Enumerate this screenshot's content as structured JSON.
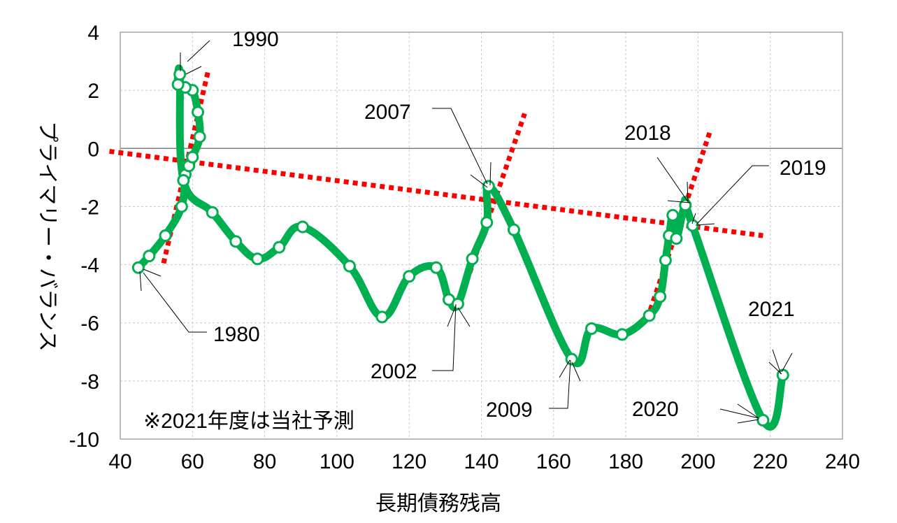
{
  "chart_data": {
    "type": "line",
    "title": "",
    "xlabel": "長期債務残高",
    "ylabel": "プライマリー・バランス",
    "xlim": [
      40,
      240
    ],
    "ylim": [
      -10,
      4
    ],
    "xticks": [
      "40",
      "60",
      "80",
      "100",
      "120",
      "140",
      "160",
      "180",
      "200",
      "220",
      "240"
    ],
    "yticks": [
      "4",
      "2",
      "0",
      "-2",
      "-4",
      "-6",
      "-8",
      "-10"
    ],
    "grid": true,
    "note": "※2021年度は当社予測",
    "colors": {
      "series": "#00b050",
      "trend": "#ff0000"
    },
    "series": [
      {
        "points": [
          [
            45,
            -4.1
          ],
          [
            48,
            -3.7
          ],
          [
            52.5,
            -3.0
          ],
          [
            57,
            -2.0
          ],
          [
            58,
            -0.9
          ],
          [
            59,
            -0.6
          ],
          [
            60,
            -0.3
          ],
          [
            62,
            0.4
          ],
          [
            61.5,
            1.25
          ],
          [
            60,
            2.0
          ],
          [
            58,
            2.1
          ],
          [
            56,
            2.2
          ],
          [
            56.5,
            2.55
          ],
          [
            57.5,
            -1.1
          ],
          [
            65.5,
            -2.2
          ],
          [
            72,
            -3.2
          ],
          [
            78,
            -3.8
          ],
          [
            84,
            -3.4
          ],
          [
            90.5,
            -2.7
          ],
          [
            103.5,
            -4.05
          ],
          [
            112.5,
            -5.8
          ],
          [
            120,
            -4.4
          ],
          [
            127.5,
            -4.1
          ],
          [
            131,
            -5.2
          ],
          [
            133.5,
            -5.35
          ],
          [
            137.5,
            -3.8
          ],
          [
            141.5,
            -2.55
          ],
          [
            142,
            -1.3
          ],
          [
            149,
            -2.8
          ],
          [
            165,
            -7.25
          ],
          [
            170.5,
            -6.2
          ],
          [
            179,
            -6.4
          ],
          [
            186.5,
            -5.75
          ],
          [
            189.5,
            -5.1
          ],
          [
            191,
            -3.85
          ],
          [
            192,
            -3.0
          ],
          [
            193,
            -2.3
          ],
          [
            194,
            -3.1
          ],
          [
            196.5,
            -1.95
          ],
          [
            198.5,
            -2.65
          ],
          [
            218,
            -9.35
          ],
          [
            223.5,
            -7.8
          ]
        ]
      }
    ],
    "trendlines": [
      {
        "from": [
          37,
          -0.1
        ],
        "to": [
          218,
          -3.0
        ]
      },
      {
        "from": [
          52,
          -3.95
        ],
        "to": [
          64.5,
          2.75
        ]
      },
      {
        "from": [
          133.5,
          -5.45
        ],
        "to": [
          152,
          1.2
        ]
      },
      {
        "from": [
          186,
          -5.85
        ],
        "to": [
          203.5,
          0.65
        ]
      }
    ],
    "annotations": [
      {
        "label": "1990",
        "at": [
          56.5,
          2.55
        ]
      },
      {
        "label": "1980",
        "at": [
          45,
          -4.1
        ]
      },
      {
        "label": "2007",
        "at": [
          142,
          -1.3
        ]
      },
      {
        "label": "2002",
        "at": [
          133.5,
          -5.35
        ]
      },
      {
        "label": "2009",
        "at": [
          165,
          -7.25
        ]
      },
      {
        "label": "2018",
        "at": [
          196.5,
          -1.95
        ]
      },
      {
        "label": "2019",
        "at": [
          198.5,
          -2.65
        ]
      },
      {
        "label": "2020",
        "at": [
          218,
          -9.35
        ]
      },
      {
        "label": "2021",
        "at": [
          223.5,
          -7.8
        ]
      }
    ]
  }
}
